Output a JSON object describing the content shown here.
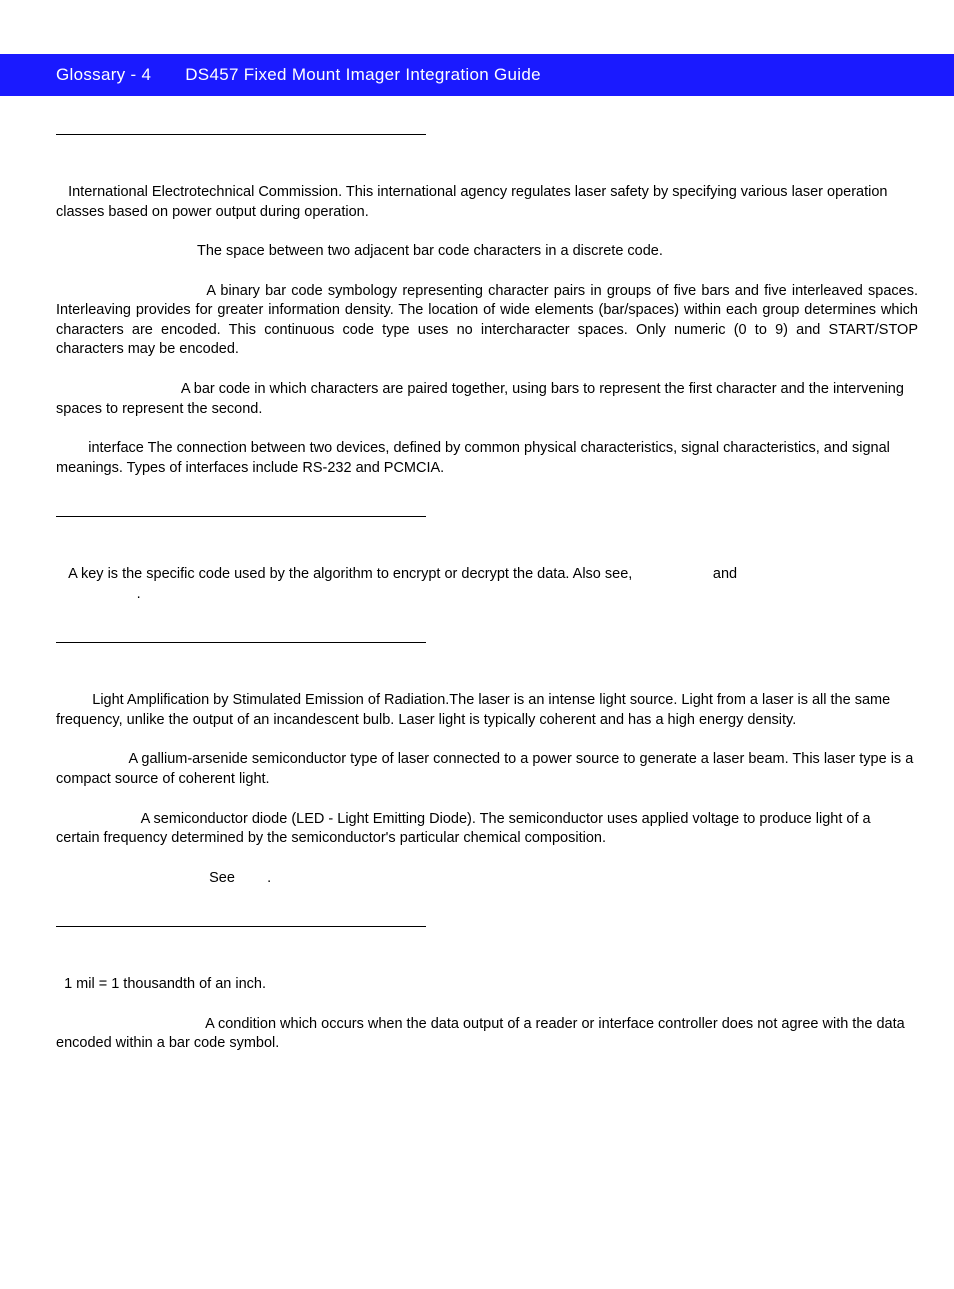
{
  "header": {
    "page_label": "Glossary - 4",
    "title": "DS457 Fixed Mount Imager Integration Guide"
  },
  "colors": {
    "header_bg": "#1a1aff",
    "header_text": "#ffffff",
    "body_text": "#000000",
    "page_bg": "#ffffff"
  },
  "section_I": {
    "iec": "International Electrotechnical Commission. This international agency regulates laser safety by specifying various laser operation classes based on power output during operation.",
    "interchar_gap": "The space between two adjacent bar code characters in a discrete code.",
    "interleaved_2of5": "A binary bar code symbology representing character pairs in groups of five bars and five interleaved spaces. Interleaving provides for greater information density. The location of wide elements (bar/spaces) within each group determines which characters are encoded. This continuous code type uses no intercharacter spaces. Only numeric (0 to 9) and START/STOP characters may be encoded.",
    "interleaved_barcode": "A bar code in which characters are paired together, using bars to represent the first character and the intervening spaces to represent the second.",
    "interface": "interface The connection between two devices, defined by common physical characteristics, signal characteristics, and signal meanings. Types of interfaces include RS-232 and PCMCIA."
  },
  "section_K": {
    "key_pre": "A key is the specific code used by the algorithm to encrypt or decrypt the data. Also see,",
    "key_mid": "and",
    "key_post": "."
  },
  "section_L": {
    "laser": "Light Amplification by Stimulated Emission of Radiation.The laser is an intense light source. Light from a laser is all the same frequency, unlike the output of an incandescent bulb. Laser light is typically coherent and has a high energy density.",
    "laser_diode": "A gallium-arsenide semiconductor type of laser connected to a power source to generate a laser beam. This laser type is a compact source of coherent light.",
    "led": "A semiconductor diode (LED - Light Emitting Diode). The semiconductor uses applied voltage to produce light of a certain frequency determined by the semiconductor's particular chemical composition.",
    "led_see": "See",
    "led_see_post": "."
  },
  "section_M": {
    "mil": "1 mil = 1 thousandth of an inch.",
    "misread": "A condition which occurs when the data output of a reader or interface controller does not agree with the data encoded within a bar code symbol."
  }
}
